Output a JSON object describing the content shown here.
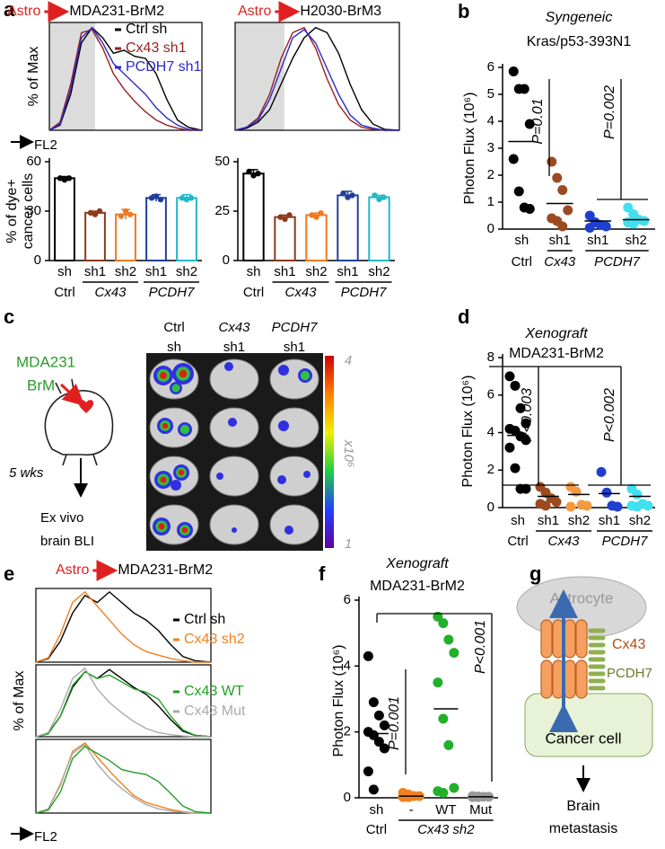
{
  "panel_labels": [
    "a",
    "b",
    "c",
    "d",
    "e",
    "f",
    "g"
  ],
  "chart_data": [
    {
      "type": "line",
      "title_from": "Astro",
      "title": "MDA231-BrM2",
      "ylabel": "% of Max",
      "xlabel": "FL2",
      "xlim": [
        0,
        100
      ],
      "ylim": [
        0,
        105
      ],
      "x": [
        0,
        7,
        14,
        21,
        28,
        35,
        42,
        49,
        56,
        63,
        70,
        77,
        84,
        91,
        100
      ],
      "series": [
        {
          "name": "Ctrl sh",
          "color": "#000000",
          "values": [
            0,
            5,
            35,
            85,
            100,
            90,
            75,
            78,
            72,
            70,
            55,
            30,
            10,
            3,
            0
          ]
        },
        {
          "name": "Cx43 sh1",
          "color": "#9a1f1f",
          "values": [
            0,
            8,
            45,
            95,
            98,
            80,
            55,
            40,
            28,
            18,
            10,
            5,
            2,
            0,
            0
          ]
        },
        {
          "name": "PCDH7 sh1",
          "color": "#2a2ad0",
          "values": [
            0,
            6,
            40,
            90,
            100,
            85,
            65,
            55,
            45,
            35,
            22,
            12,
            5,
            1,
            0
          ]
        }
      ]
    },
    {
      "type": "line",
      "title_from": "Astro",
      "title": "H2030-BrM3",
      "xlim": [
        0,
        100
      ],
      "ylim": [
        0,
        105
      ],
      "x": [
        0,
        7,
        14,
        21,
        28,
        35,
        42,
        49,
        56,
        63,
        70,
        77,
        84,
        91,
        100
      ],
      "series": [
        {
          "color": "#000000",
          "values": [
            0,
            2,
            8,
            20,
            45,
            70,
            90,
            100,
            95,
            75,
            45,
            20,
            6,
            1,
            0
          ]
        },
        {
          "color": "#9a1f1f",
          "values": [
            0,
            3,
            12,
            35,
            70,
            95,
            100,
            80,
            50,
            25,
            10,
            3,
            1,
            0,
            0
          ]
        },
        {
          "color": "#2a2ad0",
          "values": [
            0,
            3,
            10,
            30,
            60,
            90,
            98,
            85,
            60,
            35,
            15,
            5,
            2,
            0,
            0
          ]
        }
      ]
    },
    {
      "type": "bar",
      "ylabel": [
        "% of dye+",
        "cancer cells"
      ],
      "ylim": [
        0,
        60
      ],
      "yticks": [
        0,
        30,
        60
      ],
      "categories": [
        "sh",
        "sh1",
        "sh2",
        "sh1",
        "sh2"
      ],
      "groups": [
        {
          "label": "Ctrl"
        },
        {
          "label": "Cx43",
          "italic": true
        },
        {
          "label": "PCDH7",
          "italic": true
        }
      ],
      "colors": [
        "#000000",
        "#8b3a1a",
        "#f07820",
        "#1f3f9a",
        "#22b8c8"
      ],
      "values": [
        50,
        29,
        28,
        38,
        38
      ],
      "errors": [
        1,
        1,
        3,
        2,
        2
      ],
      "points": [
        [
          50,
          49,
          50
        ],
        [
          29,
          28,
          30
        ],
        [
          27,
          30,
          28
        ],
        [
          38,
          39,
          37
        ],
        [
          38,
          37,
          38
        ]
      ]
    },
    {
      "type": "bar",
      "ylim": [
        0,
        50
      ],
      "yticks": [
        0,
        25,
        50
      ],
      "categories": [
        "sh",
        "sh1",
        "sh2",
        "sh1",
        "sh2"
      ],
      "groups": [
        {
          "label": "Ctrl"
        },
        {
          "label": "Cx43",
          "italic": true
        },
        {
          "label": "PCDH7",
          "italic": true
        }
      ],
      "colors": [
        "#000000",
        "#8b3a1a",
        "#f07820",
        "#1f3f9a",
        "#22b8c8"
      ],
      "values": [
        44,
        22,
        23,
        33,
        32
      ],
      "errors": [
        2,
        1,
        1,
        2,
        1
      ],
      "points": [
        [
          45,
          43,
          44
        ],
        [
          22,
          21,
          23
        ],
        [
          23,
          22,
          24
        ],
        [
          34,
          32,
          33
        ],
        [
          33,
          31,
          32
        ]
      ]
    },
    {
      "type": "dot",
      "title": "Syngeneic",
      "subtitle": "Kras/p53-393N1",
      "ylabel": "Photon Flux (10⁶)",
      "ylim": [
        0,
        6
      ],
      "yticks": [
        0,
        1,
        2,
        3,
        4,
        5,
        6
      ],
      "categories": [
        "sh",
        "sh1",
        "sh1",
        "sh2"
      ],
      "groups": [
        {
          "label": "Ctrl"
        },
        {
          "label": "Cx43",
          "italic": true
        },
        {
          "label": "PCDH7",
          "italic": true
        }
      ],
      "colors": [
        "#000000",
        "#9c4a1f",
        "#1f3fd0",
        "#40e0f0"
      ],
      "points": [
        [
          5.85,
          5.2,
          5.2,
          3.9,
          2.6,
          1.4,
          0.8,
          0.75
        ],
        [
          2.5,
          1.9,
          1.45,
          0.7,
          0.4,
          0.3,
          0.1
        ],
        [
          0.5,
          0.25,
          0.15,
          0.1,
          0.05
        ],
        [
          0.8,
          0.55,
          0.35,
          0.3,
          0.25,
          0.2
        ]
      ],
      "means": [
        3.25,
        0.95,
        0.3,
        0.35
      ],
      "annotations": [
        "P=0.01",
        "P=0.002"
      ]
    },
    {
      "type": "dot",
      "title": "Xenograft",
      "subtitle": "MDA231-BrM2",
      "ylabel": "Photon Flux (10⁶)",
      "ylim": [
        0,
        8
      ],
      "yticks": [
        0,
        2,
        4,
        6,
        8
      ],
      "categories": [
        "sh",
        "sh1",
        "sh2",
        "sh1",
        "sh2"
      ],
      "groups": [
        {
          "label": "Ctrl"
        },
        {
          "label": "Cx43",
          "italic": true
        },
        {
          "label": "PCDH7",
          "italic": true
        }
      ],
      "colors": [
        "#000000",
        "#9c4a1f",
        "#f39a40",
        "#1f3fd0",
        "#40e0f0"
      ],
      "points": [
        [
          7,
          6.5,
          5.3,
          4.5,
          4.2,
          4.1,
          3.8,
          3.6,
          3.2,
          2.1,
          1,
          1
        ],
        [
          1.1,
          0.8,
          0.5,
          0.3,
          0.2,
          0.1
        ],
        [
          1.1,
          0.85,
          0.15,
          0.1,
          0.05
        ],
        [
          1.9,
          0.8,
          0.1,
          0.05
        ],
        [
          1,
          0.7,
          0.2,
          0.1,
          0.1,
          0.05
        ]
      ],
      "means": [
        3.85,
        0.6,
        0.7,
        0.75,
        0.6
      ],
      "annotations": [
        "P<0.003",
        "P<0.002"
      ]
    },
    {
      "type": "line",
      "title_from": "Astro",
      "title": "MDA231-BrM2",
      "xlim": [
        0,
        100
      ],
      "ylim": [
        0,
        105
      ],
      "x": [
        0,
        7,
        14,
        21,
        28,
        35,
        42,
        49,
        56,
        63,
        70,
        77,
        84,
        91,
        100
      ],
      "series": [
        {
          "name": "Ctrl sh",
          "color": "#000000",
          "values": [
            0,
            5,
            30,
            70,
            95,
            85,
            100,
            85,
            70,
            60,
            45,
            25,
            8,
            2,
            0
          ]
        },
        {
          "name": "Cx43 sh2",
          "color": "#f08020",
          "values": [
            0,
            6,
            40,
            85,
            100,
            80,
            60,
            40,
            25,
            15,
            10,
            5,
            2,
            0,
            0
          ]
        }
      ]
    },
    {
      "type": "line",
      "ylabel": "% of Max",
      "xlim": [
        0,
        100
      ],
      "ylim": [
        0,
        105
      ],
      "x": [
        0,
        7,
        14,
        21,
        28,
        35,
        42,
        49,
        56,
        63,
        70,
        77,
        84,
        91,
        100
      ],
      "series": [
        {
          "color": "#000000",
          "values": [
            0,
            5,
            30,
            72,
            95,
            85,
            98,
            85,
            72,
            62,
            45,
            25,
            8,
            2,
            0
          ]
        },
        {
          "name": "Cx43 WT",
          "color": "#22a022",
          "values": [
            0,
            4,
            30,
            75,
            95,
            85,
            90,
            80,
            70,
            65,
            55,
            30,
            10,
            2,
            0
          ]
        },
        {
          "name": "Cx43 Mut",
          "color": "#aaaaaa",
          "values": [
            0,
            6,
            40,
            85,
            100,
            70,
            50,
            35,
            22,
            12,
            6,
            3,
            1,
            0,
            0
          ]
        }
      ]
    },
    {
      "type": "line",
      "xlabel": "FL2",
      "xlim": [
        0,
        100
      ],
      "ylim": [
        0,
        105
      ],
      "x": [
        0,
        7,
        14,
        21,
        28,
        35,
        42,
        49,
        56,
        63,
        70,
        77,
        84,
        91,
        100
      ],
      "series": [
        {
          "color": "#f08020",
          "values": [
            0,
            6,
            40,
            88,
            100,
            80,
            60,
            42,
            25,
            15,
            10,
            5,
            2,
            0,
            0
          ]
        },
        {
          "color": "#aaaaaa",
          "values": [
            0,
            6,
            42,
            85,
            98,
            70,
            50,
            35,
            22,
            12,
            6,
            3,
            1,
            0,
            0
          ]
        },
        {
          "color": "#22a022",
          "values": [
            0,
            4,
            30,
            78,
            95,
            85,
            75,
            62,
            58,
            55,
            45,
            28,
            10,
            2,
            0
          ]
        }
      ]
    },
    {
      "type": "dot",
      "title": "Xenograft",
      "subtitle": "MDA231-BrM2",
      "ylabel": "Photon Flux (10⁶)",
      "ylim": [
        0,
        6
      ],
      "yticks": [
        0,
        2,
        4,
        6
      ],
      "categories": [
        "sh",
        "-",
        "WT",
        "Mut"
      ],
      "groups": [
        {
          "label": "Ctrl"
        },
        {
          "label": "Cx43 sh2",
          "italic": true
        }
      ],
      "colors": [
        "#000000",
        "#f08020",
        "#22b02a",
        "#999999"
      ],
      "points": [
        [
          4.3,
          2.9,
          2.5,
          2.2,
          2,
          1.9,
          1.7,
          1.5,
          0.8,
          0.25
        ],
        [
          0.15,
          0.1,
          0.05,
          0.05,
          0.02,
          0.02
        ],
        [
          5.5,
          5.3,
          4.8,
          4.4,
          3.5,
          2.4,
          1.6,
          0.3,
          0.2,
          0.15
        ],
        [
          0.05,
          0.04,
          0.03,
          0.03,
          0.02,
          0.02
        ]
      ],
      "means": [
        1.95,
        0.05,
        2.7,
        0.03
      ],
      "annotations": [
        "P=0.001",
        "P<0.001"
      ]
    }
  ],
  "panel_c": {
    "source": [
      "MDA231",
      "BrM"
    ],
    "time": "5 wks",
    "readout": [
      "Ex vivo",
      "brain BLI"
    ],
    "columns": [
      [
        "Ctrl",
        "sh"
      ],
      [
        "Cx43",
        "sh1"
      ],
      [
        "PCDH7",
        "sh1"
      ]
    ],
    "colorbar": {
      "max": 4,
      "unit": "x10⁶",
      "min": 1
    }
  },
  "panel_g": {
    "astrocyte": "Astrocyte",
    "channel": "Cx43",
    "adhesion": "PCDH7",
    "cell": "Cancer cell",
    "outcome": [
      "Brain",
      "metastasis"
    ]
  }
}
